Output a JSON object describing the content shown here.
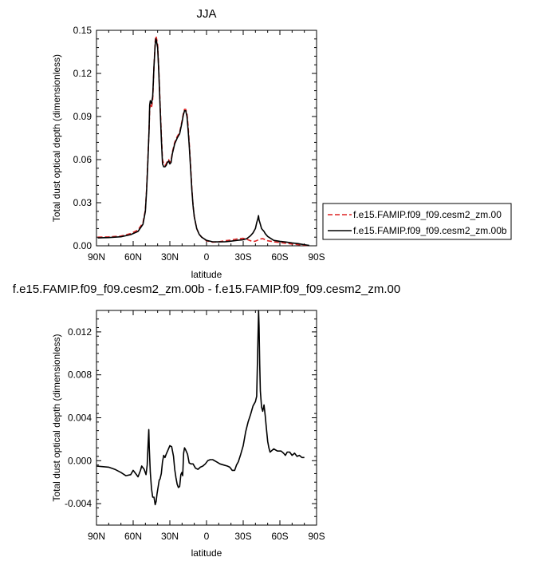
{
  "chart_data": [
    {
      "type": "line",
      "title": "JJA",
      "xlabel": "latitude",
      "ylabel": "Total dust optical depth (dimensionless)",
      "x_direction": "north-to-south",
      "xlim": [
        90,
        -90
      ],
      "ylim": [
        0,
        0.15
      ],
      "x_ticks": [
        90,
        60,
        30,
        0,
        -30,
        -60,
        -90
      ],
      "x_tick_labels": [
        "90N",
        "60N",
        "30N",
        "0",
        "30S",
        "60S",
        "90S"
      ],
      "y_ticks": [
        0,
        0.03,
        0.06,
        0.09,
        0.12,
        0.15
      ],
      "y_tick_labels": [
        "0.00",
        "0.03",
        "0.06",
        "0.09",
        "0.12",
        "0.15"
      ],
      "legend_position": "right",
      "series": [
        {
          "name": "f.e15.FAMIP.f09_f09.cesm2_zm.00",
          "color": "#dd2222",
          "dash": "dashed",
          "points": [
            [
              89,
              0.006
            ],
            [
              80,
              0.0062
            ],
            [
              70,
              0.0068
            ],
            [
              62,
              0.0085
            ],
            [
              56,
              0.011
            ],
            [
              52,
              0.016
            ],
            [
              50,
              0.025
            ],
            [
              49,
              0.04
            ],
            [
              48,
              0.06
            ],
            [
              47,
              0.08
            ],
            [
              46.5,
              0.095
            ],
            [
              46,
              0.098
            ],
            [
              45.5,
              0.097
            ],
            [
              45,
              0.096
            ],
            [
              44,
              0.102
            ],
            [
              43,
              0.125
            ],
            [
              42,
              0.142
            ],
            [
              41.5,
              0.146
            ],
            [
              41,
              0.145
            ],
            [
              40,
              0.14
            ],
            [
              39,
              0.122
            ],
            [
              38,
              0.1
            ],
            [
              37,
              0.078
            ],
            [
              36,
              0.06
            ],
            [
              35,
              0.057
            ],
            [
              34,
              0.056
            ],
            [
              33,
              0.057
            ],
            [
              32,
              0.059
            ],
            [
              31,
              0.06
            ],
            [
              30,
              0.058
            ],
            [
              29,
              0.059
            ],
            [
              28,
              0.065
            ],
            [
              26,
              0.072
            ],
            [
              24,
              0.076
            ],
            [
              22,
              0.079
            ],
            [
              20,
              0.087
            ],
            [
              19,
              0.092
            ],
            [
              18,
              0.095
            ],
            [
              17,
              0.095
            ],
            [
              16,
              0.092
            ],
            [
              15,
              0.083
            ],
            [
              14,
              0.07
            ],
            [
              13,
              0.055
            ],
            [
              12,
              0.04
            ],
            [
              11,
              0.028
            ],
            [
              10,
              0.02
            ],
            [
              8,
              0.012
            ],
            [
              6,
              0.008
            ],
            [
              4,
              0.006
            ],
            [
              0,
              0.0035
            ],
            [
              -5,
              0.0025
            ],
            [
              -10,
              0.0028
            ],
            [
              -15,
              0.0035
            ],
            [
              -20,
              0.004
            ],
            [
              -25,
              0.0048
            ],
            [
              -30,
              0.0052
            ],
            [
              -33,
              0.0045
            ],
            [
              -36,
              0.0035
            ],
            [
              -38,
              0.003
            ],
            [
              -40,
              0.0032
            ],
            [
              -42,
              0.004
            ],
            [
              -44,
              0.0048
            ],
            [
              -46,
              0.005
            ],
            [
              -48,
              0.0042
            ],
            [
              -50,
              0.0035
            ],
            [
              -55,
              0.0028
            ],
            [
              -60,
              0.0023
            ],
            [
              -65,
              0.0017
            ],
            [
              -70,
              0.0012
            ],
            [
              -75,
              0.0008
            ],
            [
              -80,
              0.0004
            ],
            [
              -84,
              0.0002
            ]
          ]
        },
        {
          "name": "f.e15.FAMIP.f09_f09.cesm2_zm.00b",
          "color": "#000000",
          "dash": "solid",
          "points": [
            [
              89,
              0.0055
            ],
            [
              80,
              0.0057
            ],
            [
              70,
              0.0063
            ],
            [
              62,
              0.0078
            ],
            [
              56,
              0.01
            ],
            [
              52,
              0.015
            ],
            [
              50,
              0.024
            ],
            [
              49,
              0.039
            ],
            [
              48,
              0.058
            ],
            [
              47,
              0.08
            ],
            [
              46.5,
              0.098
            ],
            [
              46,
              0.101
            ],
            [
              45.5,
              0.1
            ],
            [
              45,
              0.099
            ],
            [
              44,
              0.104
            ],
            [
              43,
              0.125
            ],
            [
              42,
              0.14
            ],
            [
              41.5,
              0.144
            ],
            [
              41,
              0.143
            ],
            [
              40,
              0.138
            ],
            [
              39,
              0.12
            ],
            [
              38,
              0.098
            ],
            [
              37,
              0.075
            ],
            [
              36,
              0.057
            ],
            [
              35,
              0.055
            ],
            [
              34,
              0.055
            ],
            [
              33,
              0.056
            ],
            [
              32,
              0.058
            ],
            [
              31,
              0.059
            ],
            [
              30,
              0.057
            ],
            [
              29,
              0.058
            ],
            [
              28,
              0.064
            ],
            [
              26,
              0.071
            ],
            [
              24,
              0.075
            ],
            [
              22,
              0.078
            ],
            [
              20,
              0.086
            ],
            [
              19,
              0.091
            ],
            [
              18,
              0.094
            ],
            [
              17,
              0.094
            ],
            [
              16,
              0.09
            ],
            [
              15,
              0.08
            ],
            [
              14,
              0.068
            ],
            [
              13,
              0.053
            ],
            [
              12,
              0.039
            ],
            [
              11,
              0.028
            ],
            [
              10,
              0.02
            ],
            [
              8,
              0.012
            ],
            [
              6,
              0.008
            ],
            [
              4,
              0.006
            ],
            [
              0,
              0.0038
            ],
            [
              -5,
              0.0028
            ],
            [
              -10,
              0.0027
            ],
            [
              -15,
              0.0028
            ],
            [
              -20,
              0.0032
            ],
            [
              -25,
              0.0038
            ],
            [
              -30,
              0.0042
            ],
            [
              -33,
              0.005
            ],
            [
              -36,
              0.007
            ],
            [
              -38,
              0.009
            ],
            [
              -40,
              0.012
            ],
            [
              -41,
              0.016
            ],
            [
              -42,
              0.019
            ],
            [
              -42.5,
              0.021
            ],
            [
              -43,
              0.018
            ],
            [
              -44,
              0.015
            ],
            [
              -45,
              0.012
            ],
            [
              -46,
              0.011
            ],
            [
              -47,
              0.01
            ],
            [
              -48,
              0.0085
            ],
            [
              -50,
              0.0065
            ],
            [
              -55,
              0.0038
            ],
            [
              -60,
              0.0031
            ],
            [
              -65,
              0.0026
            ],
            [
              -70,
              0.002
            ],
            [
              -75,
              0.0015
            ],
            [
              -80,
              0.0007
            ],
            [
              -84,
              0.0003
            ]
          ]
        }
      ]
    },
    {
      "type": "line",
      "title": "f.e15.FAMIP.f09_f09.cesm2_zm.00b - f.e15.FAMIP.f09_f09.cesm2_zm.00",
      "xlabel": "latitude",
      "ylabel": "Total dust optical depth (dimensionless)",
      "x_direction": "north-to-south",
      "xlim": [
        90,
        -90
      ],
      "ylim": [
        -0.006,
        0.014
      ],
      "x_ticks": [
        90,
        60,
        30,
        0,
        -30,
        -60,
        -90
      ],
      "x_tick_labels": [
        "90N",
        "60N",
        "30N",
        "0",
        "30S",
        "60S",
        "90S"
      ],
      "y_ticks": [
        -0.004,
        0,
        0.004,
        0.008,
        0.012
      ],
      "y_tick_labels": [
        "-0.004",
        "0.000",
        "0.004",
        "0.008",
        "0.012"
      ],
      "series": [
        {
          "color": "#000000",
          "dash": "solid",
          "points": [
            [
              90,
              -0.0005
            ],
            [
              80,
              -0.0006
            ],
            [
              75,
              -0.0008
            ],
            [
              70,
              -0.0011
            ],
            [
              66,
              -0.0014
            ],
            [
              62,
              -0.0013
            ],
            [
              60,
              -0.0009
            ],
            [
              58,
              -0.0012
            ],
            [
              56,
              -0.0015
            ],
            [
              54,
              -0.0009
            ],
            [
              53,
              -0.0005
            ],
            [
              51,
              -0.0008
            ],
            [
              49.5,
              -0.0013
            ],
            [
              48.5,
              -0.0004
            ],
            [
              47.8,
              0.0015
            ],
            [
              47.2,
              0.0029
            ],
            [
              46.8,
              0.0012
            ],
            [
              46,
              -0.0011
            ],
            [
              45,
              -0.0026
            ],
            [
              44,
              -0.0034
            ],
            [
              43,
              -0.0034
            ],
            [
              42,
              -0.0041
            ],
            [
              41.2,
              -0.0038
            ],
            [
              40.5,
              -0.0031
            ],
            [
              39.5,
              -0.0024
            ],
            [
              38.7,
              -0.0018
            ],
            [
              38,
              -0.0017
            ],
            [
              37,
              -0.0012
            ],
            [
              36,
              -0.0001
            ],
            [
              35,
              0.0005
            ],
            [
              34,
              0.0003
            ],
            [
              33,
              0.0006
            ],
            [
              31.5,
              0.001
            ],
            [
              30,
              0.0014
            ],
            [
              28.5,
              0.0013
            ],
            [
              27,
              0.0004
            ],
            [
              26,
              -0.0008
            ],
            [
              25,
              -0.0016
            ],
            [
              24,
              -0.0022
            ],
            [
              23,
              -0.0025
            ],
            [
              22,
              -0.0024
            ],
            [
              21,
              -0.0013
            ],
            [
              20.2,
              -0.0011
            ],
            [
              19.5,
              -0.0014
            ],
            [
              18.7,
              0.0007
            ],
            [
              18,
              0.0012
            ],
            [
              17,
              0.001
            ],
            [
              15.5,
              0.0006
            ],
            [
              14.2,
              -0.0002
            ],
            [
              12.8,
              -0.0003
            ],
            [
              11,
              -0.0003
            ],
            [
              9,
              -0.0007
            ],
            [
              7,
              -0.0008
            ],
            [
              5,
              -0.0006
            ],
            [
              3,
              -0.0005
            ],
            [
              1,
              -0.0003
            ],
            [
              -1,
              0.0
            ],
            [
              -3,
              0.0001
            ],
            [
              -5,
              0.0001
            ],
            [
              -8,
              -0.0001
            ],
            [
              -11,
              -0.0003
            ],
            [
              -14,
              -0.0004
            ],
            [
              -17,
              -0.0005
            ],
            [
              -19,
              -0.0006
            ],
            [
              -21,
              -0.0009
            ],
            [
              -23,
              -0.0009
            ],
            [
              -24.5,
              -0.0004
            ],
            [
              -26,
              -0.0001
            ],
            [
              -28,
              0.0006
            ],
            [
              -30,
              0.0014
            ],
            [
              -32,
              0.0027
            ],
            [
              -34,
              0.0036
            ],
            [
              -36,
              0.0043
            ],
            [
              -38,
              0.0051
            ],
            [
              -40,
              0.0055
            ],
            [
              -41,
              0.006
            ],
            [
              -42,
              0.011
            ],
            [
              -42.6,
              0.014
            ],
            [
              -43,
              0.0125
            ],
            [
              -43.5,
              0.009
            ],
            [
              -44,
              0.0065
            ],
            [
              -45,
              0.005
            ],
            [
              -46,
              0.0046
            ],
            [
              -47,
              0.0052
            ],
            [
              -48,
              0.0042
            ],
            [
              -49,
              0.003
            ],
            [
              -50,
              0.0018
            ],
            [
              -51,
              0.0012
            ],
            [
              -52,
              0.0008
            ],
            [
              -55,
              0.0011
            ],
            [
              -58,
              0.0009
            ],
            [
              -61,
              0.0009
            ],
            [
              -63,
              0.0007
            ],
            [
              -64.5,
              0.0005
            ],
            [
              -66,
              0.0008
            ],
            [
              -68,
              0.0008
            ],
            [
              -70,
              0.0005
            ],
            [
              -72,
              0.0007
            ],
            [
              -74,
              0.0004
            ],
            [
              -76,
              0.0005
            ],
            [
              -78,
              0.0003
            ],
            [
              -80,
              0.0003
            ]
          ]
        }
      ]
    }
  ]
}
